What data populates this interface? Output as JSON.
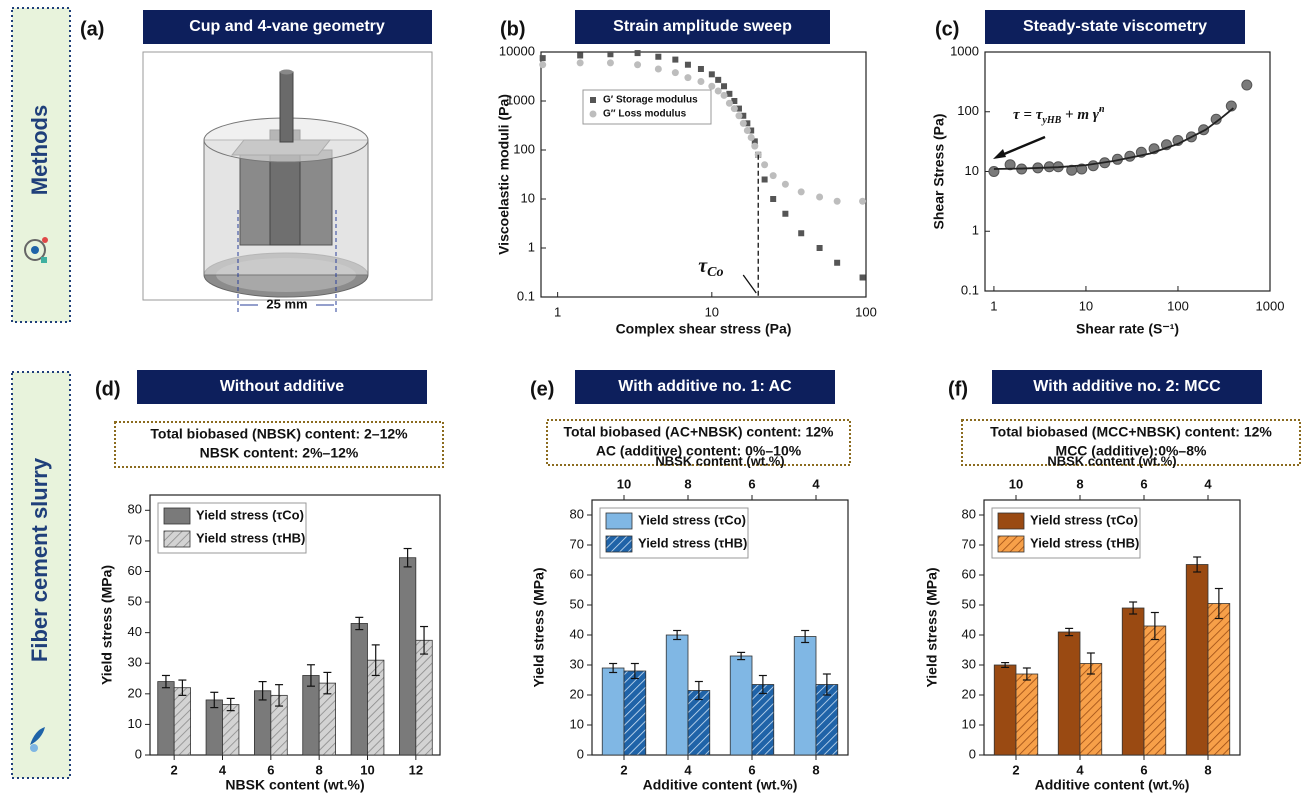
{
  "sections": [
    "Methods",
    "Fiber cement slurry"
  ],
  "panel_a": {
    "label": "(a)",
    "title": "Cup and 4-vane geometry",
    "dimension": "25 mm"
  },
  "chart_data": [
    {
      "type": "scatter",
      "label": "(b)",
      "title": "Strain amplitude sweep",
      "xlabel": "Complex shear stress (Pa)",
      "ylabel": "Viscoelastic moduli (Pa)",
      "xscale": "log",
      "yscale": "log",
      "xlim": [
        0.78,
        100
      ],
      "ylim": [
        0.1,
        10000
      ],
      "xticks": [
        1,
        10,
        100
      ],
      "yticks": [
        0.1,
        1,
        10,
        100,
        1000,
        10000
      ],
      "legend": "upper-left",
      "series": [
        {
          "name": "G′ Storage modulus",
          "color": "#555555",
          "marker": "square",
          "x": [
            0.8,
            1.4,
            2.2,
            3.3,
            4.5,
            5.8,
            7,
            8.5,
            10,
            11,
            12,
            13,
            14,
            15,
            16,
            17,
            18,
            19,
            20,
            22,
            25,
            30,
            38,
            50,
            65,
            95
          ],
          "values": [
            7500,
            8500,
            9000,
            9500,
            8000,
            7000,
            5500,
            4500,
            3500,
            2700,
            2000,
            1400,
            1000,
            700,
            500,
            350,
            250,
            150,
            80,
            25,
            10,
            5,
            2,
            1,
            0.5,
            0.25
          ]
        },
        {
          "name": "G″ Loss modulus",
          "color": "#bdbdbd",
          "marker": "circle",
          "x": [
            0.8,
            1.4,
            2.2,
            3.3,
            4.5,
            5.8,
            7,
            8.5,
            10,
            11,
            12,
            13,
            14,
            15,
            16,
            17,
            18,
            19,
            20,
            22,
            25,
            30,
            38,
            50,
            65,
            95
          ],
          "values": [
            5500,
            6000,
            6000,
            5500,
            4500,
            3800,
            3000,
            2500,
            2000,
            1600,
            1300,
            900,
            700,
            500,
            350,
            250,
            180,
            120,
            80,
            50,
            30,
            20,
            14,
            11,
            9,
            9
          ]
        }
      ],
      "annotation": {
        "symbol": "τ",
        "subscript": "Co",
        "x": 20
      }
    },
    {
      "type": "scatter",
      "label": "(c)",
      "title": "Steady-state viscometry",
      "xlabel": "Shear rate (S⁻¹)",
      "ylabel": "Shear Stress (Pa)",
      "xscale": "log",
      "yscale": "log",
      "xlim": [
        0.8,
        1000
      ],
      "ylim": [
        0.1,
        1000
      ],
      "xticks": [
        1,
        10,
        100,
        1000
      ],
      "yticks": [
        0.1,
        1,
        10,
        100,
        1000
      ],
      "series": [
        {
          "color": "#7a7a7a",
          "marker": "circle",
          "x": [
            1,
            1.5,
            2,
            3,
            4,
            5,
            7,
            9,
            12,
            16,
            22,
            30,
            40,
            55,
            75,
            100,
            140,
            190,
            260,
            380,
            560
          ],
          "values": [
            10,
            13,
            11,
            11.5,
            12,
            12,
            10.5,
            11,
            12.5,
            14,
            16,
            18,
            21,
            24,
            28,
            33,
            38,
            50,
            75,
            125,
            280
          ]
        },
        {
          "color": "#222222",
          "marker": "line",
          "x": [
            1,
            2,
            5,
            10,
            20,
            50,
            100,
            200,
            300,
            400
          ],
          "values": [
            11,
            11.2,
            11.8,
            12.8,
            15,
            20,
            29,
            50,
            80,
            115
          ]
        }
      ],
      "equation": {
        "lhs": "τ = τ",
        "sub": "yHB",
        "rhs": " + m γ̇",
        "sup": "n"
      }
    },
    {
      "type": "bar",
      "label": "(d)",
      "title": "Without additive",
      "note": [
        "Total biobased (NBSK) content: 2–12%",
        "NBSK content: 2%–12%"
      ],
      "xlabel": "NBSK content (wt.%)",
      "ylabel": "Yield stress (MPa)",
      "categories": [
        2,
        4,
        6,
        8,
        10,
        12
      ],
      "ylim": [
        0,
        85
      ],
      "yticks": [
        0,
        10,
        20,
        30,
        40,
        50,
        60,
        70,
        80
      ],
      "legend": "upper-left",
      "series": [
        {
          "name": "Yield stress (τCo)",
          "color": "#7a7a7a",
          "hatch": false,
          "values": [
            24,
            18,
            21,
            26,
            43,
            64.5
          ],
          "errors": [
            2,
            2.5,
            3,
            3.5,
            2,
            3
          ]
        },
        {
          "name": "Yield stress (τHB)",
          "color": "#d3d3d3",
          "hatch": true,
          "hatch_color": "#8a8a8a",
          "values": [
            22,
            16.5,
            19.5,
            23.5,
            31,
            37.5
          ],
          "errors": [
            2.5,
            2,
            3.5,
            3.5,
            5,
            4.5
          ]
        }
      ]
    },
    {
      "type": "bar",
      "label": "(e)",
      "title": "With additive no. 1: AC",
      "note": [
        "Total biobased (AC+NBSK) content: 12%",
        "AC (additive) content: 0%–10%"
      ],
      "xlabel": "Additive content (wt.%)",
      "ylabel": "Yield stress (MPa)",
      "top_axis": {
        "label": "NBSK content (wt.%)",
        "categories": [
          10,
          8,
          6,
          4
        ]
      },
      "categories": [
        2,
        4,
        6,
        8
      ],
      "ylim": [
        0,
        85
      ],
      "yticks": [
        0,
        10,
        20,
        30,
        40,
        50,
        60,
        70,
        80
      ],
      "legend": "upper-left",
      "series": [
        {
          "name": "Yield stress (τCo)",
          "color": "#80b7e4",
          "hatch": false,
          "values": [
            29,
            40,
            33,
            39.5
          ],
          "errors": [
            1.5,
            1.5,
            1.2,
            2
          ]
        },
        {
          "name": "Yield stress (τHB)",
          "color": "#1f63a8",
          "hatch": true,
          "hatch_color": "#cfe3f5",
          "values": [
            28,
            21.5,
            23.5,
            23.5
          ],
          "errors": [
            2.5,
            3,
            3,
            3.5
          ]
        }
      ]
    },
    {
      "type": "bar",
      "label": "(f)",
      "title": "With additive no. 2: MCC",
      "note": [
        "Total biobased (MCC+NBSK) content: 12%",
        "MCC (additive):0%–8%"
      ],
      "xlabel": "Additive content (wt.%)",
      "ylabel": "Yield stress (MPa)",
      "top_axis": {
        "label": "NBSK content (wt.%)",
        "categories": [
          10,
          8,
          6,
          4
        ]
      },
      "categories": [
        2,
        4,
        6,
        8
      ],
      "ylim": [
        0,
        85
      ],
      "yticks": [
        0,
        10,
        20,
        30,
        40,
        50,
        60,
        70,
        80
      ],
      "legend": "upper-left",
      "series": [
        {
          "name": "Yield stress (τCo)",
          "color": "#9a4a12",
          "hatch": false,
          "values": [
            30,
            41,
            49,
            63.5
          ],
          "errors": [
            0.8,
            1.2,
            2,
            2.5
          ]
        },
        {
          "name": "Yield stress (τHB)",
          "color": "#f7a049",
          "hatch": true,
          "hatch_color": "#9a4a12",
          "values": [
            27,
            30.5,
            43,
            50.5
          ],
          "errors": [
            2,
            3.5,
            4.5,
            5
          ]
        }
      ]
    }
  ]
}
